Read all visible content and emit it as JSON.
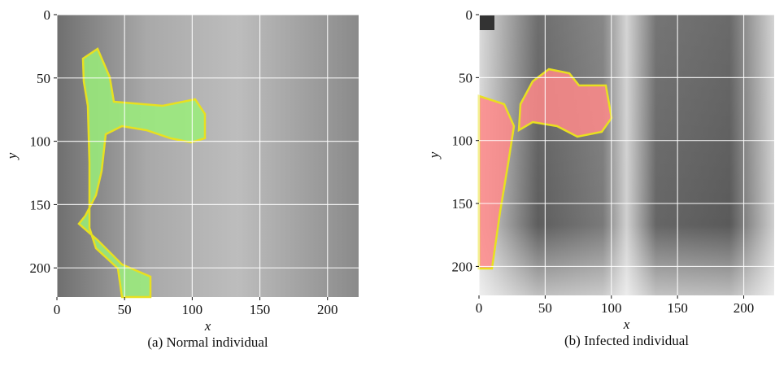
{
  "chart_data": [
    {
      "type": "image",
      "caption": "(a) Normal individual",
      "xlabel": "x",
      "ylabel": "y",
      "xlim": [
        0,
        223
      ],
      "ylim": [
        223,
        0
      ],
      "xticks": [
        0,
        50,
        100,
        150,
        200
      ],
      "yticks": [
        0,
        50,
        100,
        150,
        200
      ],
      "grid": true,
      "overlay_color": "#9aee7a"
    },
    {
      "type": "image",
      "caption": "(b) Infected individual",
      "xlabel": "x",
      "ylabel": "y",
      "xlim": [
        0,
        223
      ],
      "ylim": [
        223,
        0
      ],
      "xticks": [
        0,
        50,
        100,
        150,
        200
      ],
      "yticks": [
        0,
        50,
        100,
        150,
        200
      ],
      "grid": true,
      "overlay_color": "#ff8a8a"
    }
  ]
}
